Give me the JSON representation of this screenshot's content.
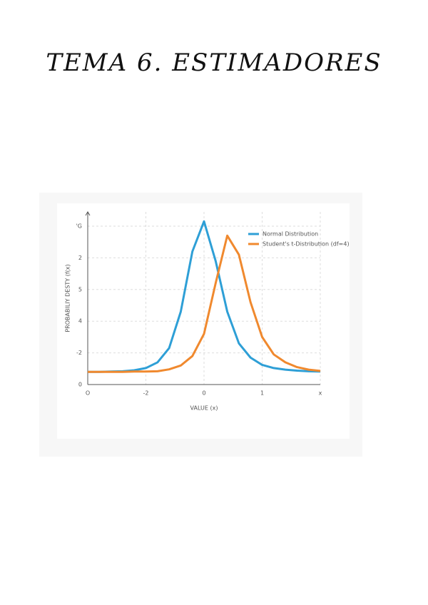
{
  "header": {
    "title": "TEMA 6. ESTIMADORES"
  },
  "chart_data": {
    "type": "line",
    "x_label": "VALUE (x)",
    "y_label": "PROBABILIY DESTY (f(x)",
    "x": [
      0,
      0.2,
      0.4,
      0.6,
      0.8,
      1.0,
      1.2,
      1.4,
      1.6,
      1.8,
      2.0,
      2.2,
      2.4,
      2.6,
      2.8,
      3.0,
      3.2,
      3.4,
      3.6,
      3.8,
      4.0
    ],
    "series": [
      {
        "name": "Normal Distribution",
        "color": "#2e9fd6",
        "values": [
          0.4,
          0.4,
          0.41,
          0.42,
          0.45,
          0.52,
          0.7,
          1.15,
          2.3,
          4.2,
          5.15,
          3.9,
          2.3,
          1.3,
          0.85,
          0.62,
          0.52,
          0.47,
          0.44,
          0.42,
          0.41
        ]
      },
      {
        "name": "Student's t-Distribution (df=4)",
        "color": "#f0892e",
        "values": [
          0.4,
          0.4,
          0.4,
          0.4,
          0.41,
          0.41,
          0.42,
          0.48,
          0.6,
          0.9,
          1.6,
          3.2,
          4.7,
          4.1,
          2.6,
          1.5,
          0.95,
          0.7,
          0.55,
          0.47,
          0.43
        ]
      }
    ],
    "xlim": [
      0,
      4
    ],
    "ylim": [
      0,
      5.45
    ],
    "xticks": [
      {
        "value": 0,
        "label": "O"
      },
      {
        "value": 1,
        "label": "-2"
      },
      {
        "value": 2,
        "label": "0"
      },
      {
        "value": 3,
        "label": "1"
      },
      {
        "value": 4,
        "label": "x"
      }
    ],
    "yticks": [
      0,
      {
        "value": 1,
        "label": "-2"
      },
      {
        "value": 2,
        "label": "4"
      },
      {
        "value": 3,
        "label": "5"
      },
      {
        "value": 4,
        "label": "2"
      },
      {
        "value": 5,
        "label": "'G"
      }
    ],
    "grid": true,
    "legend": "upper right"
  }
}
